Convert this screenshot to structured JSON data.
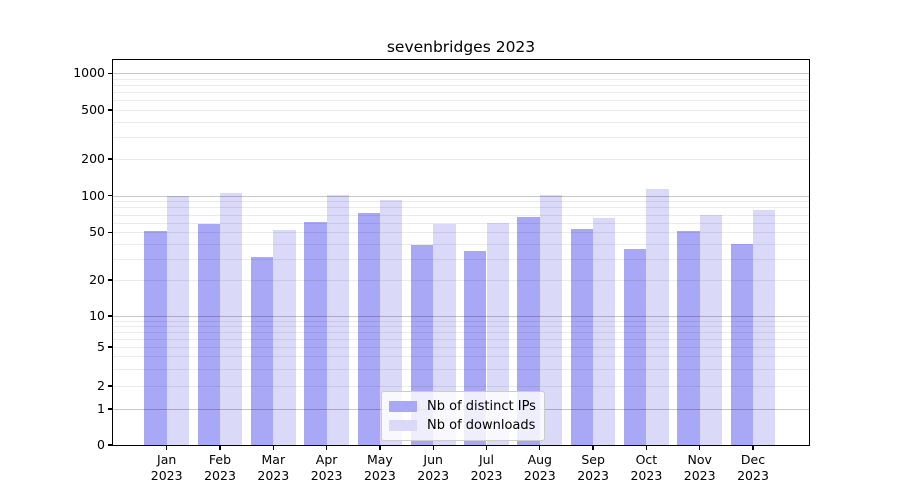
{
  "title": "sevenbridges 2023",
  "chart_data": {
    "type": "bar",
    "title": "sevenbridges 2023",
    "categories": [
      "Jan 2023",
      "Feb 2023",
      "Mar 2023",
      "Apr 2023",
      "May 2023",
      "Jun 2023",
      "Jul 2023",
      "Aug 2023",
      "Sep 2023",
      "Oct 2023",
      "Nov 2023",
      "Dec 2023"
    ],
    "series": [
      {
        "name": "Nb of distinct IPs",
        "color": "#a9a8f6",
        "values": [
          51,
          59,
          31,
          61,
          72,
          39,
          35,
          67,
          53,
          36,
          51,
          40
        ]
      },
      {
        "name": "Nb of downloads",
        "color": "#dbd9f8",
        "values": [
          100,
          105,
          52,
          102,
          93,
          59,
          60,
          102,
          66,
          114,
          70,
          77
        ]
      }
    ],
    "xlabel": "",
    "ylabel": "",
    "yscale": "symlog",
    "ylim": [
      0,
      1300
    ],
    "yticks": [
      0,
      1,
      2,
      5,
      10,
      20,
      50,
      100,
      200,
      500,
      1000
    ],
    "grid": true,
    "legend_position": "lower center"
  }
}
